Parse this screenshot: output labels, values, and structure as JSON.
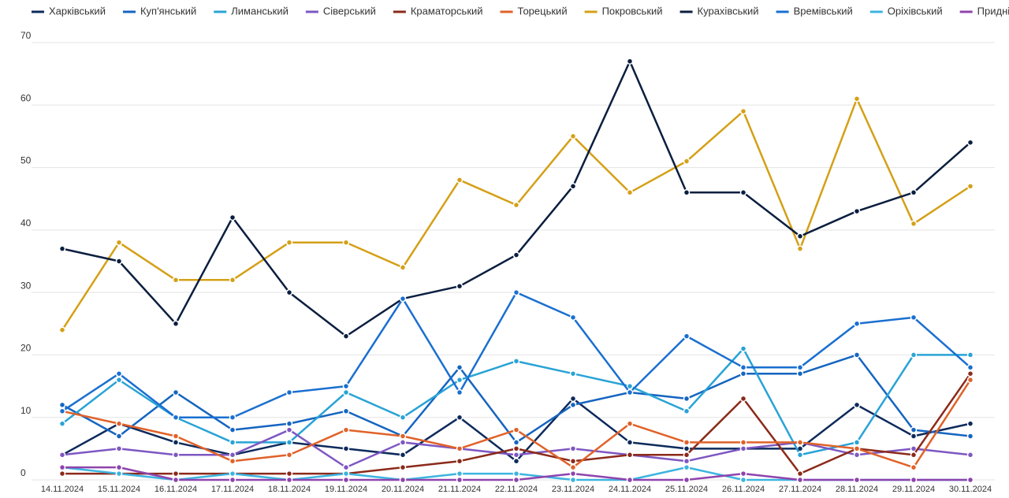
{
  "chart_data": {
    "type": "line",
    "x": [
      "14.11.2024",
      "15.11.2024",
      "16.11.2024",
      "17.11.2024",
      "18.11.2024",
      "19.11.2024",
      "20.11.2024",
      "21.11.2024",
      "22.11.2024",
      "23.11.2024",
      "24.11.2024",
      "25.11.2024",
      "26.11.2024",
      "27.11.2024",
      "28.11.2024",
      "29.11.2024",
      "30.11.2024"
    ],
    "series": [
      {
        "name": "Харківський",
        "color": "#0d2a5c",
        "values": [
          4,
          9,
          6,
          4,
          6,
          5,
          4,
          10,
          3,
          13,
          6,
          5,
          5,
          5,
          12,
          7,
          9
        ]
      },
      {
        "name": "Куп'янський",
        "color": "#1565c0",
        "values": [
          12,
          7,
          14,
          8,
          9,
          11,
          7,
          18,
          6,
          12,
          14,
          13,
          17,
          17,
          20,
          8,
          7
        ]
      },
      {
        "name": "Лиманський",
        "color": "#29a3d6",
        "values": [
          9,
          16,
          10,
          6,
          6,
          14,
          10,
          16,
          19,
          17,
          15,
          11,
          21,
          4,
          6,
          20,
          20
        ]
      },
      {
        "name": "Сіверський",
        "color": "#7e57c2",
        "values": [
          4,
          5,
          4,
          4,
          8,
          2,
          6,
          5,
          4,
          5,
          4,
          3,
          5,
          6,
          4,
          5,
          4
        ]
      },
      {
        "name": "Краматорський",
        "color": "#8b2a1a",
        "values": [
          1,
          1,
          1,
          1,
          1,
          1,
          2,
          3,
          5,
          3,
          4,
          4,
          13,
          1,
          5,
          4,
          17
        ]
      },
      {
        "name": "Торецький",
        "color": "#e0622a",
        "values": [
          11,
          9,
          7,
          3,
          4,
          8,
          7,
          5,
          8,
          2,
          9,
          6,
          6,
          6,
          5,
          2,
          16
        ]
      },
      {
        "name": "Покровський",
        "color": "#d4a017",
        "values": [
          24,
          38,
          32,
          32,
          38,
          38,
          34,
          48,
          44,
          55,
          46,
          51,
          59,
          37,
          61,
          41,
          47
        ]
      },
      {
        "name": "Курахівський",
        "color": "#0b1e3f",
        "values": [
          37,
          35,
          25,
          42,
          30,
          23,
          29,
          31,
          36,
          47,
          67,
          46,
          46,
          39,
          43,
          46,
          54
        ]
      },
      {
        "name": "Времівський",
        "color": "#1a6fd0",
        "values": [
          11,
          17,
          10,
          10,
          14,
          15,
          29,
          14,
          30,
          26,
          14,
          23,
          18,
          18,
          25,
          26,
          18
        ]
      },
      {
        "name": "Оріхівський",
        "color": "#3cb4e0",
        "values": [
          2,
          1,
          0,
          1,
          0,
          1,
          0,
          1,
          1,
          0,
          0,
          2,
          0,
          0,
          0,
          0,
          0
        ]
      },
      {
        "name": "Придніпровський",
        "color": "#8e44ad",
        "values": [
          2,
          2,
          0,
          0,
          0,
          0,
          0,
          0,
          0,
          1,
          0,
          0,
          1,
          0,
          0,
          0,
          0
        ]
      }
    ],
    "ylim": [
      0,
      70
    ],
    "yticks": [
      0,
      10,
      20,
      30,
      40,
      50,
      60,
      70
    ],
    "grid": true
  }
}
